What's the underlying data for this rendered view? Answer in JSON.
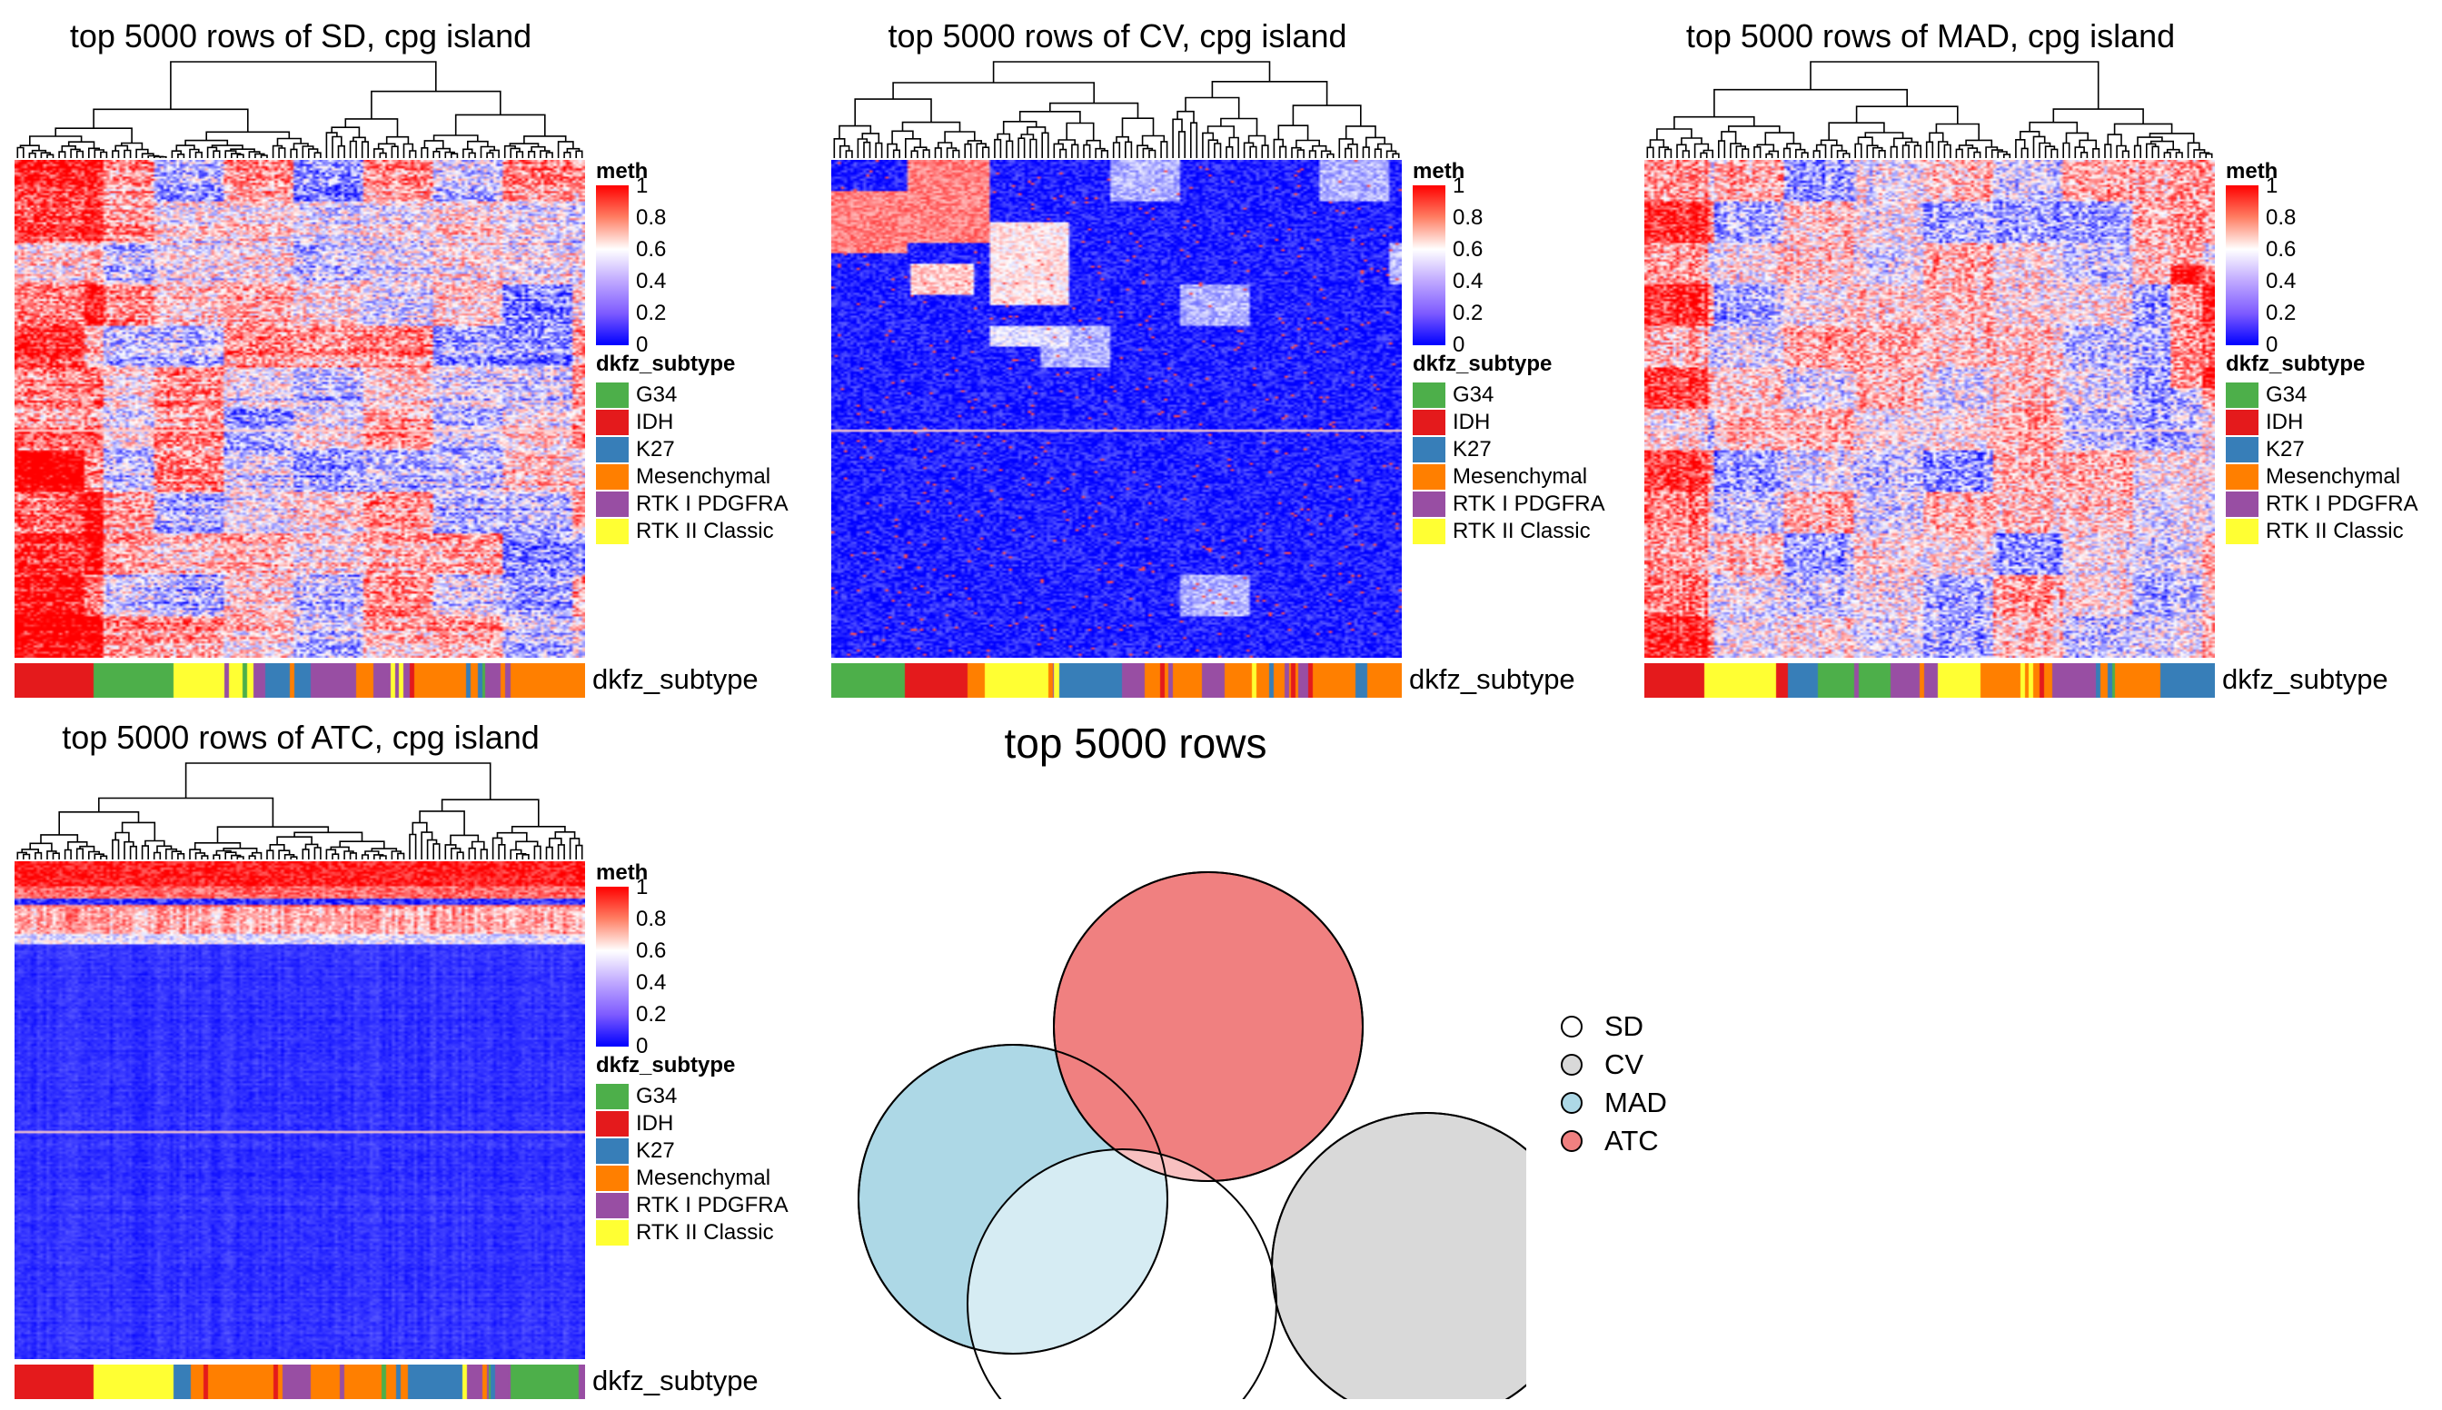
{
  "figure": {
    "heatmaps": [
      {
        "title": "top 5000 rows of SD, cpg island",
        "method": "SD",
        "pattern": "sd",
        "annotation_label": "dkfz_subtype",
        "annotation_order": [
          "IDH",
          "G34",
          "RTK II Classic",
          "RTK I PDGFRA",
          "K27",
          "RTK I PDGFRA",
          "Mesenchymal",
          "RTK I PDGFRA",
          "Mesenchymal",
          "RTK I PDGFRA",
          "Mesenchymal"
        ],
        "annotation_weights": [
          0.14,
          0.14,
          0.14,
          0.02,
          0.08,
          0.08,
          0.03,
          0.07,
          0.12,
          0.05,
          0.13
        ]
      },
      {
        "title": "top 5000 rows of CV, cpg island",
        "method": "CV",
        "pattern": "cv",
        "annotation_label": "dkfz_subtype",
        "annotation_order": [
          "G34",
          "IDH",
          "Mesenchymal",
          "RTK II Classic",
          "K27",
          "RTK I PDGFRA",
          "Mesenchymal",
          "RTK I PDGFRA",
          "Mesenchymal",
          "RTK I PDGFRA",
          "Mesenchymal",
          "K27",
          "Mesenchymal"
        ],
        "annotation_weights": [
          0.13,
          0.11,
          0.03,
          0.13,
          0.11,
          0.04,
          0.1,
          0.04,
          0.13,
          0.02,
          0.08,
          0.02,
          0.06
        ]
      },
      {
        "title": "top 5000 rows of MAD, cpg island",
        "method": "MAD",
        "pattern": "mad",
        "annotation_label": "dkfz_subtype",
        "annotation_order": [
          "IDH",
          "RTK II Classic",
          "IDH",
          "K27",
          "G34",
          "RTK I PDGFRA",
          "RTK II Classic",
          "Mesenchymal",
          "RTK I PDGFRA",
          "Mesenchymal",
          "K27"
        ],
        "annotation_weights": [
          0.1,
          0.12,
          0.02,
          0.05,
          0.12,
          0.08,
          0.07,
          0.12,
          0.08,
          0.1,
          0.09
        ]
      },
      {
        "title": "top 5000 rows of ATC, cpg island",
        "method": "ATC",
        "pattern": "atc",
        "annotation_label": "dkfz_subtype",
        "annotation_order": [
          "IDH",
          "RTK II Classic",
          "K27",
          "Mesenchymal",
          "RTK I PDGFRA",
          "Mesenchymal",
          "K27",
          "RTK I PDGFRA",
          "G34",
          "RTK I PDGFRA"
        ],
        "annotation_weights": [
          0.14,
          0.14,
          0.03,
          0.16,
          0.05,
          0.17,
          0.1,
          0.08,
          0.12,
          0.01
        ]
      }
    ],
    "meth_legend": {
      "title": "meth",
      "ticks": [
        "1",
        "0.8",
        "0.6",
        "0.4",
        "0.2",
        "0"
      ],
      "colors": {
        "high": "#ff0000",
        "mid": "#ffffff",
        "low": "#0000ff"
      }
    },
    "subtype_legend": {
      "title": "dkfz_subtype",
      "items": [
        {
          "label": "G34",
          "color": "#4daf4a"
        },
        {
          "label": "IDH",
          "color": "#e41a1c"
        },
        {
          "label": "K27",
          "color": "#377eb8"
        },
        {
          "label": "Mesenchymal",
          "color": "#ff7f00"
        },
        {
          "label": "RTK I PDGFRA",
          "color": "#984ea3"
        },
        {
          "label": "RTK II Classic",
          "color": "#ffff33"
        }
      ]
    }
  },
  "chart_data": [
    {
      "type": "heatmap",
      "title": "top 5000 rows of SD, cpg island",
      "value_legend": "meth",
      "value_range": [
        0,
        1
      ],
      "column_annotation": "dkfz_subtype",
      "groups": [
        "G34",
        "IDH",
        "K27",
        "Mesenchymal",
        "RTK I PDGFRA",
        "RTK II Classic"
      ]
    },
    {
      "type": "heatmap",
      "title": "top 5000 rows of CV, cpg island",
      "value_legend": "meth",
      "value_range": [
        0,
        1
      ],
      "column_annotation": "dkfz_subtype",
      "groups": [
        "G34",
        "IDH",
        "K27",
        "Mesenchymal",
        "RTK I PDGFRA",
        "RTK II Classic"
      ]
    },
    {
      "type": "heatmap",
      "title": "top 5000 rows of MAD, cpg island",
      "value_legend": "meth",
      "value_range": [
        0,
        1
      ],
      "column_annotation": "dkfz_subtype",
      "groups": [
        "G34",
        "IDH",
        "K27",
        "Mesenchymal",
        "RTK I PDGFRA",
        "RTK II Classic"
      ]
    },
    {
      "type": "heatmap",
      "title": "top 5000 rows of ATC, cpg island",
      "value_legend": "meth",
      "value_range": [
        0,
        1
      ],
      "column_annotation": "dkfz_subtype",
      "groups": [
        "G34",
        "IDH",
        "K27",
        "Mesenchymal",
        "RTK I PDGFRA",
        "RTK II Classic"
      ]
    },
    {
      "type": "venn",
      "title": "top 5000 rows",
      "sets": [
        {
          "name": "SD",
          "color": "#ffffff"
        },
        {
          "name": "CV",
          "color": "#d9d9d9"
        },
        {
          "name": "MAD",
          "color": "#add8e6"
        },
        {
          "name": "ATC",
          "color": "#f08080"
        }
      ]
    }
  ]
}
